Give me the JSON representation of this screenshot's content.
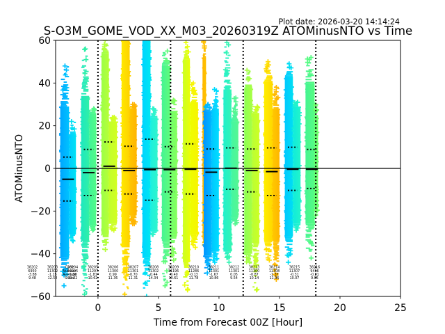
{
  "plot_date": "Plot date: 2026-03-20 14:14:24",
  "chart_data": {
    "type": "scatter",
    "title": "S-O3M_GOME_VOD_XX_M03_20260319Z ATOMinusNTO vs Time",
    "xlabel": "Time from Forecast 00Z [Hour]",
    "ylabel": "ATOMinusNTO",
    "xlim": [
      -3.5,
      25
    ],
    "ylim": [
      -60,
      60
    ],
    "xticks": [
      0,
      5,
      10,
      15,
      20,
      25
    ],
    "xticklabels": [
      "0",
      "5",
      "10",
      "15",
      "20",
      "25"
    ],
    "yticks": [
      -60,
      -40,
      -20,
      0,
      20,
      40,
      60
    ],
    "yticklabels": [
      "−60",
      "−40",
      "−20",
      "0",
      "20",
      "40",
      "60"
    ],
    "grid": false,
    "vertical_dotted_lines": [
      0,
      6,
      12,
      18
    ],
    "horizontal_line": 0,
    "stats_labels": [
      "Cycle",
      "Number",
      "Average",
      "Stdev"
    ],
    "stats": [
      {
        "cycle": "38202",
        "number": "6950",
        "average": "-3.88",
        "stdev": "9.48"
      },
      {
        "cycle": "38203",
        "number": "11302",
        "average": "-1.15",
        "stdev": "12.58"
      },
      {
        "cycle": "38204",
        "number": "11295",
        "average": "-1.98",
        "stdev": "11.62"
      },
      {
        "cycle": "38205",
        "number": "11297",
        "average": "-1.81",
        "stdev": "10.62"
      },
      {
        "cycle": "38206",
        "number": "11300",
        "average": "0.99",
        "stdev": "11.36"
      },
      {
        "cycle": "38207",
        "number": "11301",
        "average": "-0.70",
        "stdev": "11.31"
      },
      {
        "cycle": "38208",
        "number": "11302",
        "average": "-0.44",
        "stdev": "14.34"
      },
      {
        "cycle": "38209",
        "number": "11196",
        "average": "-0.40",
        "stdev": "10.61"
      },
      {
        "cycle": "38210",
        "number": "11286",
        "average": "-0.13",
        "stdev": "11.78"
      },
      {
        "cycle": "38211",
        "number": "11301",
        "average": "-1.67",
        "stdev": "10.86"
      },
      {
        "cycle": "38212",
        "number": "11301",
        "average": "0.05",
        "stdev": "9.54"
      },
      {
        "cycle": "38213",
        "number": "11300",
        "average": "-0.87",
        "stdev": "10.14"
      },
      {
        "cycle": "38214",
        "number": "11308",
        "average": "-1.37",
        "stdev": "11.96"
      },
      {
        "cycle": "38215",
        "number": "11307",
        "average": "-0.31",
        "stdev": "10.07"
      },
      {
        "cycle": "38216",
        "number": "9416",
        "average": "-0.21",
        "stdev": "9.05"
      }
    ],
    "clusters": [
      {
        "mean": -5.1,
        "upper": 5.3,
        "lower": -15.3,
        "parts": [
          {
            "x": [
              -3.12,
              -2.39
            ],
            "max": 48,
            "core": [
              29,
              -42
            ],
            "min": -55,
            "colors": [
              "#00a6ff",
              "#00c2ff"
            ]
          },
          {
            "x": [
              -2.39,
              -1.82
            ],
            "max": 22,
            "core": [
              16,
              -31
            ],
            "min": -34,
            "colors": [
              "#00ccff",
              "#00e2f4"
            ]
          }
        ]
      },
      {
        "mean": -2.0,
        "upper": 8.9,
        "lower": -12.7,
        "parts": [
          {
            "x": [
              -1.39,
              -0.73
            ],
            "max": 56,
            "core": [
              34,
              -34
            ],
            "min": -59,
            "colors": [
              "#1ee8c0",
              "#30f0a8"
            ]
          },
          {
            "x": [
              -0.73,
              -0.15
            ],
            "max": 28,
            "core": [
              26,
              -27
            ],
            "min": -29,
            "colors": [
              "#40f498",
              "#52fa88"
            ]
          }
        ]
      },
      {
        "mean": 1.0,
        "upper": 12.4,
        "lower": -10.3,
        "parts": [
          {
            "x": [
              0.29,
              0.9
            ],
            "max": 60,
            "core": [
              54,
              -31
            ],
            "min": -38,
            "colors": [
              "#9cff48",
              "#b6ff38"
            ]
          },
          {
            "x": [
              0.9,
              1.57
            ],
            "max": 24,
            "core": [
              22,
              -26
            ],
            "min": -29,
            "colors": [
              "#c2ff2c",
              "#d2ff20"
            ]
          }
        ]
      },
      {
        "mean": -1.0,
        "upper": 10.4,
        "lower": -12.0,
        "parts": [
          {
            "x": [
              1.95,
              2.62
            ],
            "max": 60,
            "core": [
              60,
              -37
            ],
            "min": -59,
            "colors": [
              "#ffe800",
              "#ffd200"
            ]
          },
          {
            "x": [
              2.62,
              3.2
            ],
            "max": 30,
            "core": [
              28,
              -22
            ],
            "min": -26,
            "colors": [
              "#ffc600",
              "#ffb400"
            ]
          }
        ]
      },
      {
        "mean": -0.6,
        "upper": 13.7,
        "lower": -14.9,
        "parts": [
          {
            "x": [
              3.67,
              4.34
            ],
            "max": 60,
            "core": [
              60,
              -42
            ],
            "min": -60,
            "colors": [
              "#00d4ff",
              "#00e6f2"
            ]
          },
          {
            "x": [
              4.34,
              4.92
            ],
            "max": 28,
            "core": [
              24,
              -29
            ],
            "min": -31,
            "colors": [
              "#1cf0e0",
              "#30f4cc"
            ]
          }
        ]
      },
      {
        "mean": -0.6,
        "upper": 10.2,
        "lower": -11.0,
        "parts": [
          {
            "x": [
              5.28,
              5.97
            ],
            "max": 55,
            "core": [
              48,
              -34
            ],
            "min": -55,
            "colors": [
              "#46f494",
              "#60fc7a"
            ]
          },
          {
            "x": [
              5.97,
              6.54
            ],
            "max": 32,
            "core": [
              27,
              -31
            ],
            "min": -43,
            "colors": [
              "#70ff6c",
              "#84ff5c"
            ]
          }
        ]
      },
      {
        "mean": -0.4,
        "upper": 11.5,
        "lower": -12.0,
        "parts": [
          {
            "x": [
              7.02,
              7.6
            ],
            "max": 59,
            "core": [
              51,
              -44
            ],
            "min": -57,
            "colors": [
              "#ccff24",
              "#e8ff08"
            ]
          },
          {
            "x": [
              7.6,
              8.27
            ],
            "max": 40,
            "core": [
              31,
              -31
            ],
            "min": -37,
            "colors": [
              "#eefe00",
              "#f8f400"
            ]
          }
        ]
      },
      {
        "mean": null,
        "upper": null,
        "lower": null,
        "parts": [
          {
            "x": [
              8.64,
              8.93
            ],
            "max": 60,
            "core": [
              52,
              -33
            ],
            "min": -36,
            "colors": [
              "#ffb800",
              "#ffc000"
            ]
          }
        ]
      },
      {
        "mean": -1.8,
        "upper": 9.1,
        "lower": -12.7,
        "parts": [
          {
            "x": [
              8.74,
              9.41
            ],
            "max": 30,
            "core": [
              27,
              -41
            ],
            "min": -49,
            "colors": [
              "#0096ff",
              "#00b8ff"
            ]
          },
          {
            "x": [
              9.41,
              9.99
            ],
            "max": 37,
            "core": [
              28,
              -39
            ],
            "min": -44,
            "colors": [
              "#00c8ff",
              "#00dcff"
            ]
          }
        ]
      },
      {
        "mean": 0.1,
        "upper": 9.6,
        "lower": -9.8,
        "parts": [
          {
            "x": [
              10.37,
              11.03
            ],
            "max": 59,
            "core": [
              37,
              -39
            ],
            "min": -44,
            "colors": [
              "#22f0cc",
              "#34f4b4"
            ]
          },
          {
            "x": [
              11.03,
              11.6
            ],
            "max": 33,
            "core": [
              22,
              -23
            ],
            "min": -26,
            "colors": [
              "#44f6a2",
              "#56f692"
            ]
          }
        ]
      },
      {
        "mean": -1.0,
        "upper": 9.1,
        "lower": -11.0,
        "parts": [
          {
            "x": [
              12.09,
              12.75
            ],
            "max": 46,
            "core": [
              38,
              -40
            ],
            "min": -44,
            "colors": [
              "#8cff54",
              "#a8ff44"
            ]
          },
          {
            "x": [
              12.75,
              13.33
            ],
            "max": 29,
            "core": [
              26,
              -35
            ],
            "min": -57,
            "colors": [
              "#baff34",
              "#ccff24"
            ]
          }
        ]
      },
      {
        "mean": -1.5,
        "upper": 9.6,
        "lower": -12.7,
        "parts": [
          {
            "x": [
              13.73,
              14.43
            ],
            "max": 50,
            "core": [
              41,
              -34
            ],
            "min": -43,
            "colors": [
              "#ffee00",
              "#ffd800"
            ]
          },
          {
            "x": [
              14.43,
              15.0
            ],
            "max": 38,
            "core": [
              28,
              -34
            ],
            "min": -52,
            "colors": [
              "#ffc800",
              "#ffb600"
            ]
          }
        ]
      },
      {
        "mean": -0.4,
        "upper": 9.9,
        "lower": -10.3,
        "parts": [
          {
            "x": [
              15.44,
              16.11
            ],
            "max": 49,
            "core": [
              43,
              -32
            ],
            "min": -44,
            "colors": [
              "#00c8ff",
              "#00def4"
            ]
          },
          {
            "x": [
              16.11,
              16.74
            ],
            "max": 31,
            "core": [
              29,
              -26
            ],
            "min": -29,
            "colors": [
              "#10ecdc",
              "#22f4ca"
            ]
          }
        ]
      },
      {
        "mean": -0.4,
        "upper": 8.9,
        "lower": -9.4,
        "parts": [
          {
            "x": [
              17.15,
              17.9
            ],
            "max": 52,
            "core": [
              40,
              -26
            ],
            "min": -42,
            "colors": [
              "#44f492",
              "#56fc82"
            ]
          },
          {
            "x": [
              17.9,
              18.19
            ],
            "max": 30,
            "core": [
              25,
              -18
            ],
            "min": -22,
            "colors": [
              "#62ff72",
              "#6cff68"
            ]
          }
        ]
      }
    ]
  }
}
